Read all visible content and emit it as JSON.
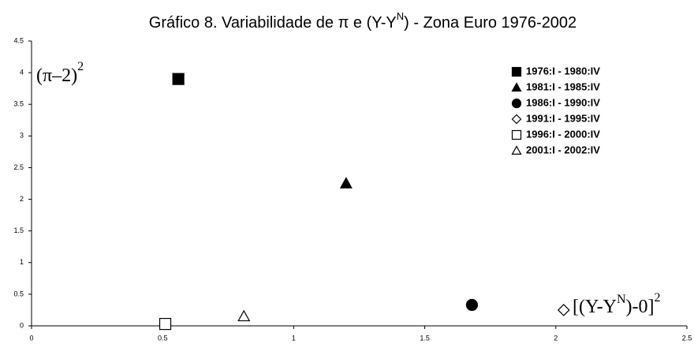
{
  "chart_data": {
    "type": "scatter",
    "title": [
      "Gráfico 8. Variabilidade de π e (Y-Y",
      "N",
      ") - Zona Euro 1976-2002"
    ],
    "y_label": [
      "(π–2)",
      "2"
    ],
    "x_label": [
      "[(Y-Y",
      "N",
      ")-0]",
      "2"
    ],
    "xlim": [
      0,
      2.5
    ],
    "xticks": [
      0,
      0.5,
      1,
      1.5,
      2,
      2.5
    ],
    "ylim": [
      0,
      4.5
    ],
    "yticks": [
      0,
      0.5,
      1,
      1.5,
      2,
      2.5,
      3,
      3.5,
      4,
      4.5
    ],
    "grid": false,
    "legend": "upper right",
    "series": [
      {
        "name": "1976:I - 1980:IV",
        "color": "#000000",
        "marker": "square",
        "filled": true,
        "x": [
          0.56
        ],
        "values": [
          3.9
        ]
      },
      {
        "name": "1981:I - 1985:IV",
        "color": "#000000",
        "marker": "triangle",
        "filled": true,
        "x": [
          1.2
        ],
        "values": [
          2.25
        ]
      },
      {
        "name": "1986:I - 1990:IV",
        "color": "#000000",
        "marker": "circle",
        "filled": true,
        "x": [
          1.68
        ],
        "values": [
          0.33
        ]
      },
      {
        "name": "1991:I - 1995:IV",
        "color": "#000000",
        "marker": "diamond",
        "filled": false,
        "x": [
          2.03
        ],
        "values": [
          0.25
        ]
      },
      {
        "name": "1996:I - 2000:IV",
        "color": "#000000",
        "marker": "square",
        "filled": false,
        "x": [
          0.51
        ],
        "values": [
          0.03
        ]
      },
      {
        "name": "2001:I - 2002:IV",
        "color": "#000000",
        "marker": "triangle",
        "filled": false,
        "x": [
          0.81
        ],
        "values": [
          0.15
        ]
      }
    ]
  }
}
